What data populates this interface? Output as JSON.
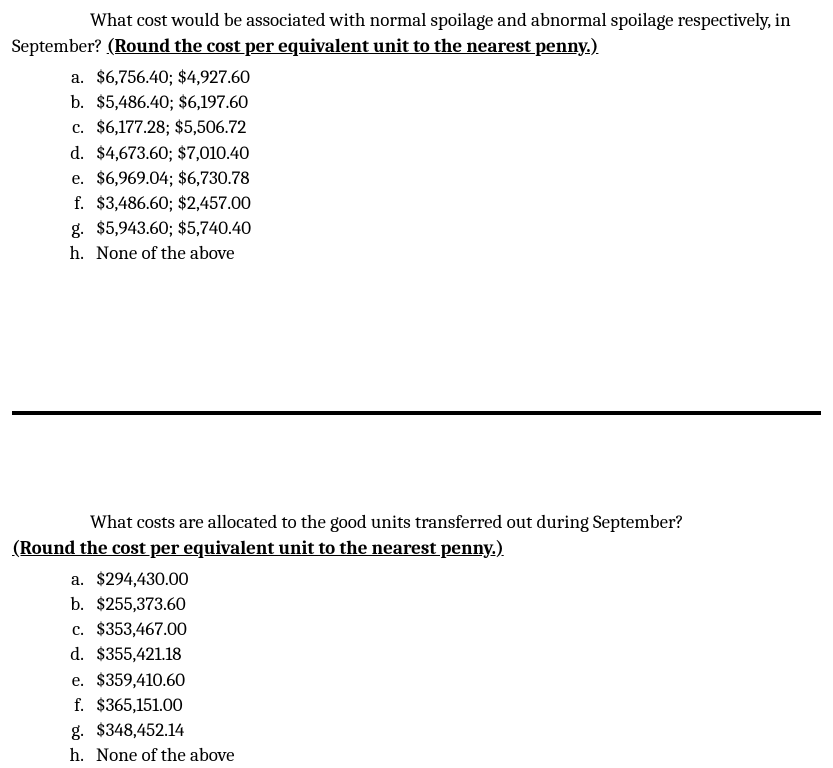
{
  "question1": {
    "prompt_part1": "What cost would be associated with normal spoilage and abnormal spoilage respectively, in September? ",
    "prompt_bold": "(Round the cost per equivalent unit to the nearest penny.)",
    "options": [
      {
        "letter": "a.",
        "text": "$6,756.40; $4,927.60"
      },
      {
        "letter": "b.",
        "text": "$5,486.40; $6,197.60"
      },
      {
        "letter": "c.",
        "text": "$6,177.28; $5,506.72"
      },
      {
        "letter": "d.",
        "text": "$4,673.60; $7,010.40"
      },
      {
        "letter": "e.",
        "text": "$6,969.04; $6,730.78"
      },
      {
        "letter": "f.",
        "text": "$3,486.60; $2,457.00"
      },
      {
        "letter": "g.",
        "text": "$5,943.60; $5,740.40"
      },
      {
        "letter": "h.",
        "text": "None of the above"
      }
    ]
  },
  "question2": {
    "prompt_part1": "What costs are allocated to the good units transferred out during September? ",
    "prompt_bold": "(Round the cost per equivalent unit to the nearest penny.)",
    "options": [
      {
        "letter": "a.",
        "text": "$294,430.00"
      },
      {
        "letter": "b.",
        "text": "$255,373.60"
      },
      {
        "letter": "c.",
        "text": "$353,467.00"
      },
      {
        "letter": "d.",
        "text": "$355,421.18"
      },
      {
        "letter": "e.",
        "text": "$359,410.60"
      },
      {
        "letter": "f.",
        "text": "$365,151.00"
      },
      {
        "letter": "g.",
        "text": "$348,452.14"
      },
      {
        "letter": "h.",
        "text": "None of the above"
      }
    ]
  }
}
